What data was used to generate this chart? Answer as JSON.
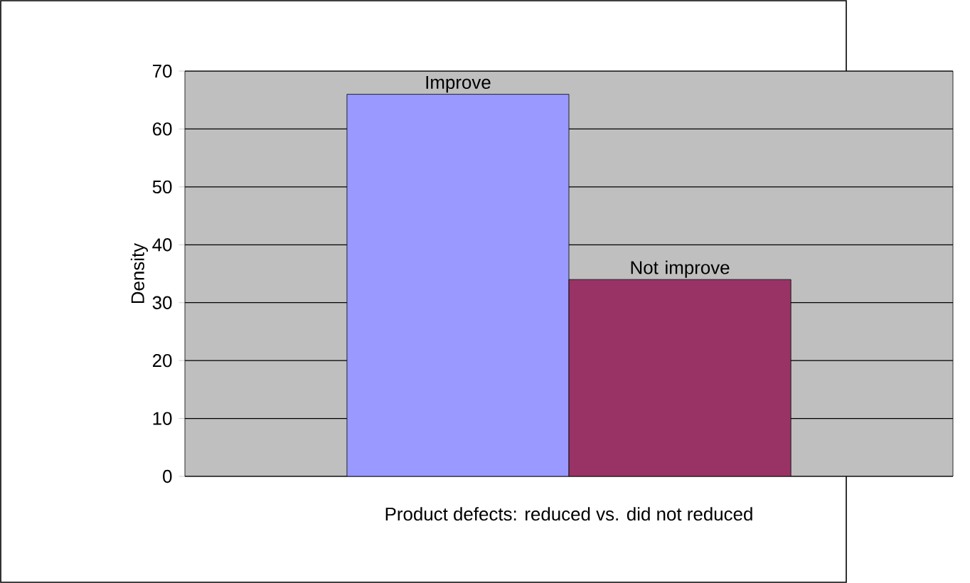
{
  "chart_data": {
    "type": "bar",
    "xlabel": "Product defects: reduced vs. did not reduced",
    "ylabel": "Density",
    "categories": [
      null
    ],
    "series": [
      {
        "name": "Improve",
        "color": "#9999ff",
        "values": [
          66
        ]
      },
      {
        "name": "Not improve",
        "color": "#993366",
        "values": [
          34
        ]
      }
    ],
    "ylim": [
      0,
      70
    ],
    "yticks": [
      0,
      10,
      20,
      30,
      40,
      50,
      60,
      70
    ],
    "grid": "y"
  }
}
